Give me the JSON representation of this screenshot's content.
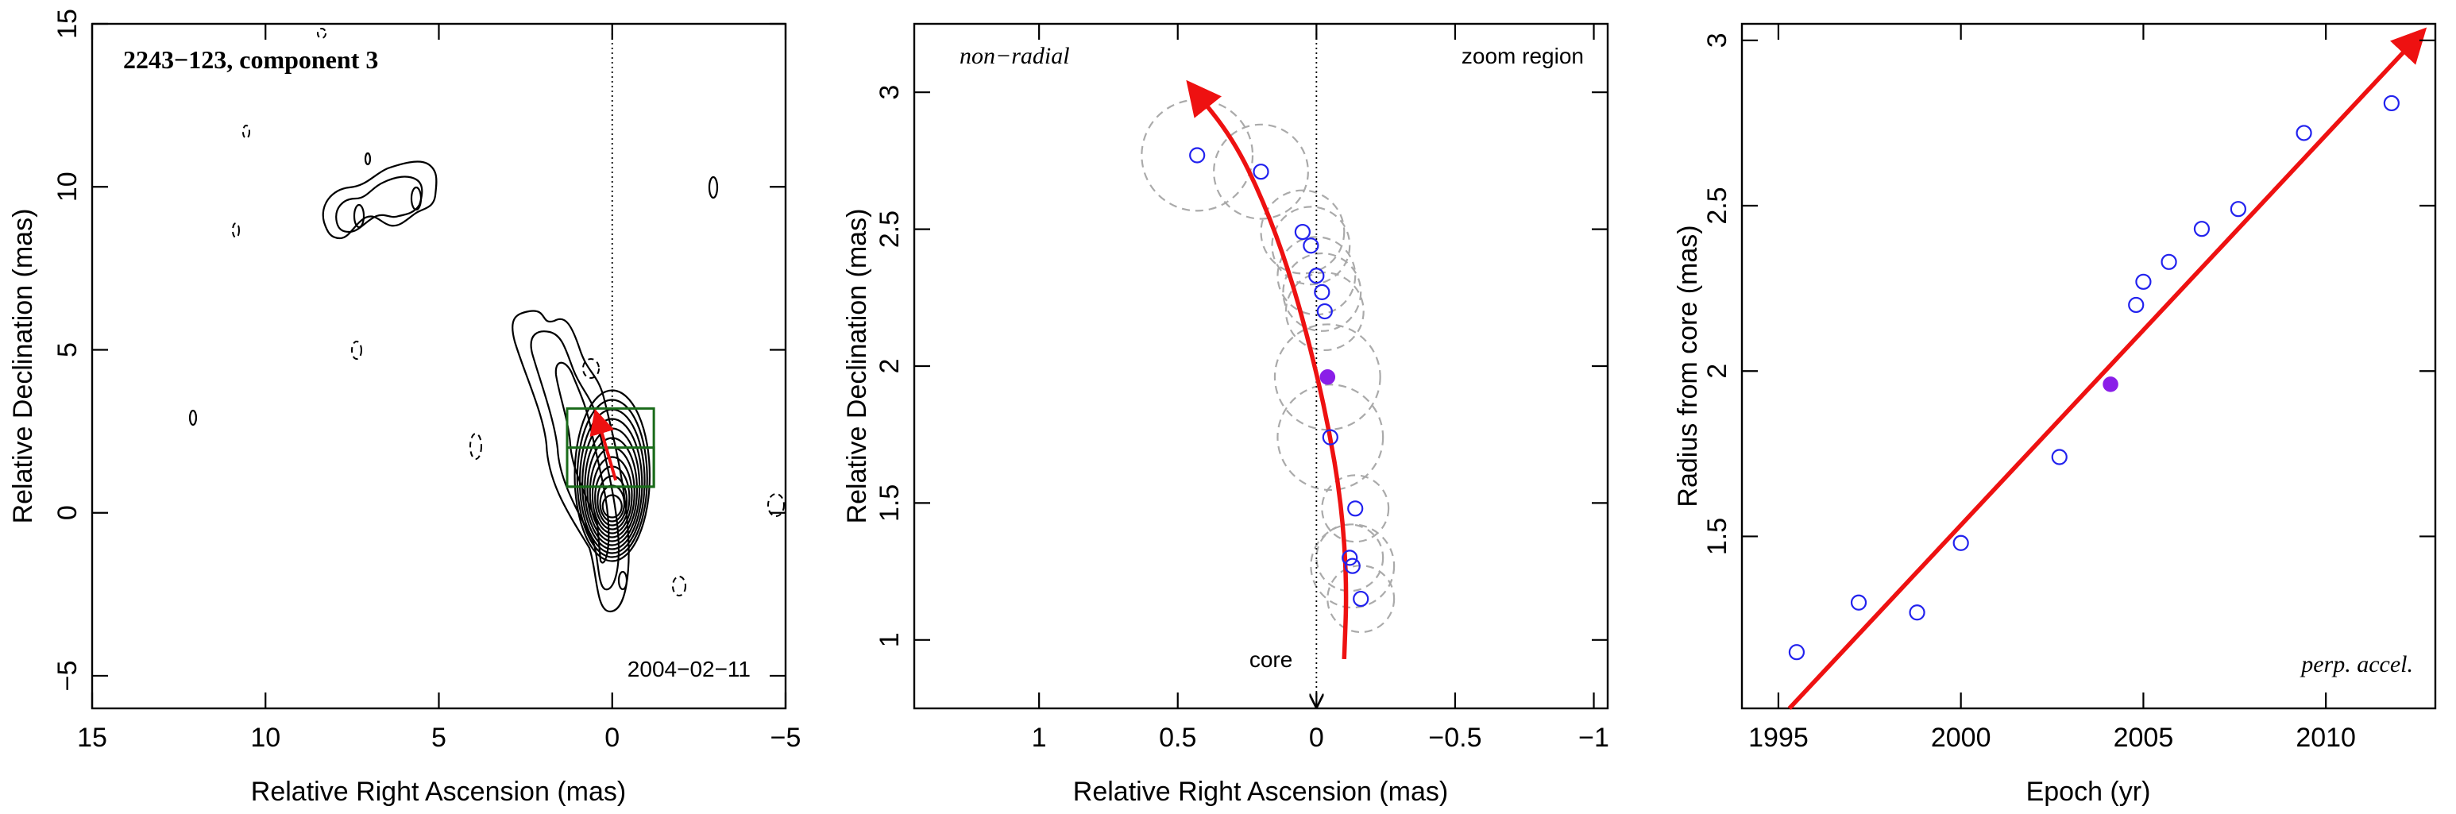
{
  "chart_data": [
    {
      "type": "contour",
      "title": "2243−123, component 3",
      "date_label": "2004−02−11",
      "xlabel": "Relative Right Ascension (mas)",
      "ylabel": "Relative Declination (mas)",
      "xlim": [
        15,
        -5
      ],
      "ylim": [
        -6,
        15
      ],
      "xticks": [
        15,
        10,
        5,
        0,
        -5
      ],
      "xtick_labels": [
        "15",
        "10",
        "5",
        "0",
        "−5"
      ],
      "yticks": [
        -5,
        0,
        5,
        10,
        15
      ],
      "ytick_labels": [
        "−5",
        "0",
        "5",
        "10",
        "15"
      ],
      "vertical_reference_ra": 0,
      "zoom_boxes": [
        {
          "ra": [
            1.3,
            -1.2
          ],
          "dec": [
            0.8,
            3.2
          ]
        },
        {
          "ra": [
            1.3,
            -1.2
          ],
          "dec": [
            0.8,
            2.0
          ]
        }
      ],
      "path_start": [
        -0.1,
        1.0
      ],
      "path_end": [
        0.45,
        3.0
      ],
      "zoom_box_color": "#1a6b1a",
      "path_color": "#ee1111"
    },
    {
      "type": "scatter",
      "corner_left_label": "non−radial",
      "corner_right_label": "zoom region",
      "core_label": "core",
      "xlabel": "Relative Right Ascension (mas)",
      "ylabel": "Relative Declination (mas)",
      "xlim": [
        1.45,
        -1.05
      ],
      "ylim": [
        0.75,
        3.25
      ],
      "xticks": [
        1,
        0.5,
        0,
        -0.5,
        -1
      ],
      "xtick_labels": [
        "1",
        "0.5",
        "0",
        "−0.5",
        "−1"
      ],
      "yticks": [
        1,
        1.5,
        2,
        2.5,
        3
      ],
      "ytick_labels": [
        "1",
        "1.5",
        "2",
        "2.5",
        "3"
      ],
      "points": [
        {
          "ra": 0.43,
          "dec": 2.77
        },
        {
          "ra": 0.2,
          "dec": 2.71
        },
        {
          "ra": 0.05,
          "dec": 2.49
        },
        {
          "ra": 0.02,
          "dec": 2.44
        },
        {
          "ra": 0.0,
          "dec": 2.33
        },
        {
          "ra": -0.02,
          "dec": 2.27
        },
        {
          "ra": -0.03,
          "dec": 2.2
        },
        {
          "ra": -0.05,
          "dec": 1.74
        },
        {
          "ra": -0.14,
          "dec": 1.48
        },
        {
          "ra": -0.12,
          "dec": 1.3
        },
        {
          "ra": -0.13,
          "dec": 1.27
        },
        {
          "ra": -0.16,
          "dec": 1.15
        }
      ],
      "highlight_point": {
        "ra": -0.04,
        "dec": 1.96
      },
      "uncertainty_circles": [
        {
          "ra": 0.43,
          "dec": 2.77,
          "r": 0.2
        },
        {
          "ra": 0.2,
          "dec": 2.71,
          "r": 0.17
        },
        {
          "ra": 0.05,
          "dec": 2.49,
          "r": 0.15
        },
        {
          "ra": 0.02,
          "dec": 2.44,
          "r": 0.14
        },
        {
          "ra": 0.0,
          "dec": 2.33,
          "r": 0.14
        },
        {
          "ra": -0.02,
          "dec": 2.27,
          "r": 0.14
        },
        {
          "ra": -0.03,
          "dec": 2.2,
          "r": 0.14
        },
        {
          "ra": -0.04,
          "dec": 1.96,
          "r": 0.19
        },
        {
          "ra": -0.05,
          "dec": 1.74,
          "r": 0.19
        },
        {
          "ra": -0.14,
          "dec": 1.48,
          "r": 0.12
        },
        {
          "ra": -0.12,
          "dec": 1.3,
          "r": 0.12
        },
        {
          "ra": -0.13,
          "dec": 1.27,
          "r": 0.15
        },
        {
          "ra": -0.16,
          "dec": 1.15,
          "r": 0.12
        }
      ],
      "curve": [
        {
          "ra": -0.1,
          "dec": 0.93
        },
        {
          "ra": -0.11,
          "dec": 1.2
        },
        {
          "ra": -0.09,
          "dec": 1.5
        },
        {
          "ra": -0.04,
          "dec": 1.8
        },
        {
          "ra": 0.03,
          "dec": 2.1
        },
        {
          "ra": 0.1,
          "dec": 2.35
        },
        {
          "ra": 0.19,
          "dec": 2.6
        },
        {
          "ra": 0.3,
          "dec": 2.83
        },
        {
          "ra": 0.45,
          "dec": 3.02
        }
      ],
      "core_arrow": {
        "ra": 0,
        "from_dec": 3.25,
        "to_dec": 0.75
      },
      "point_color": "#2222ee",
      "highlight_color": "#8a1ee8",
      "curve_color": "#ee1111"
    },
    {
      "type": "scatter",
      "corner_label": "perp. accel.",
      "xlabel": "Epoch (yr)",
      "ylabel": "Radius from core (mas)",
      "xlim": [
        1994,
        2013
      ],
      "ylim": [
        0.98,
        3.05
      ],
      "xticks": [
        1995,
        2000,
        2005,
        2010
      ],
      "xtick_labels": [
        "1995",
        "2000",
        "2005",
        "2010"
      ],
      "yticks": [
        1.5,
        2,
        2.5,
        3
      ],
      "ytick_labels": [
        "1.5",
        "2",
        "2.5",
        "3"
      ],
      "points": [
        {
          "x": 1995.5,
          "y": 1.15
        },
        {
          "x": 1997.2,
          "y": 1.3
        },
        {
          "x": 1998.8,
          "y": 1.27
        },
        {
          "x": 2000.0,
          "y": 1.48
        },
        {
          "x": 2002.7,
          "y": 1.74
        },
        {
          "x": 2004.8,
          "y": 2.2
        },
        {
          "x": 2005.0,
          "y": 2.27
        },
        {
          "x": 2005.7,
          "y": 2.33
        },
        {
          "x": 2006.6,
          "y": 2.43
        },
        {
          "x": 2007.6,
          "y": 2.49
        },
        {
          "x": 2009.4,
          "y": 2.72
        },
        {
          "x": 2011.8,
          "y": 2.81
        }
      ],
      "highlight_point": {
        "x": 2004.1,
        "y": 1.96
      },
      "fit_line": {
        "x0": 1995.3,
        "y0": 0.98,
        "x1": 2012.6,
        "y1": 3.02
      },
      "point_color": "#2222ee",
      "highlight_color": "#8a1ee8",
      "line_color": "#ee1111"
    }
  ]
}
